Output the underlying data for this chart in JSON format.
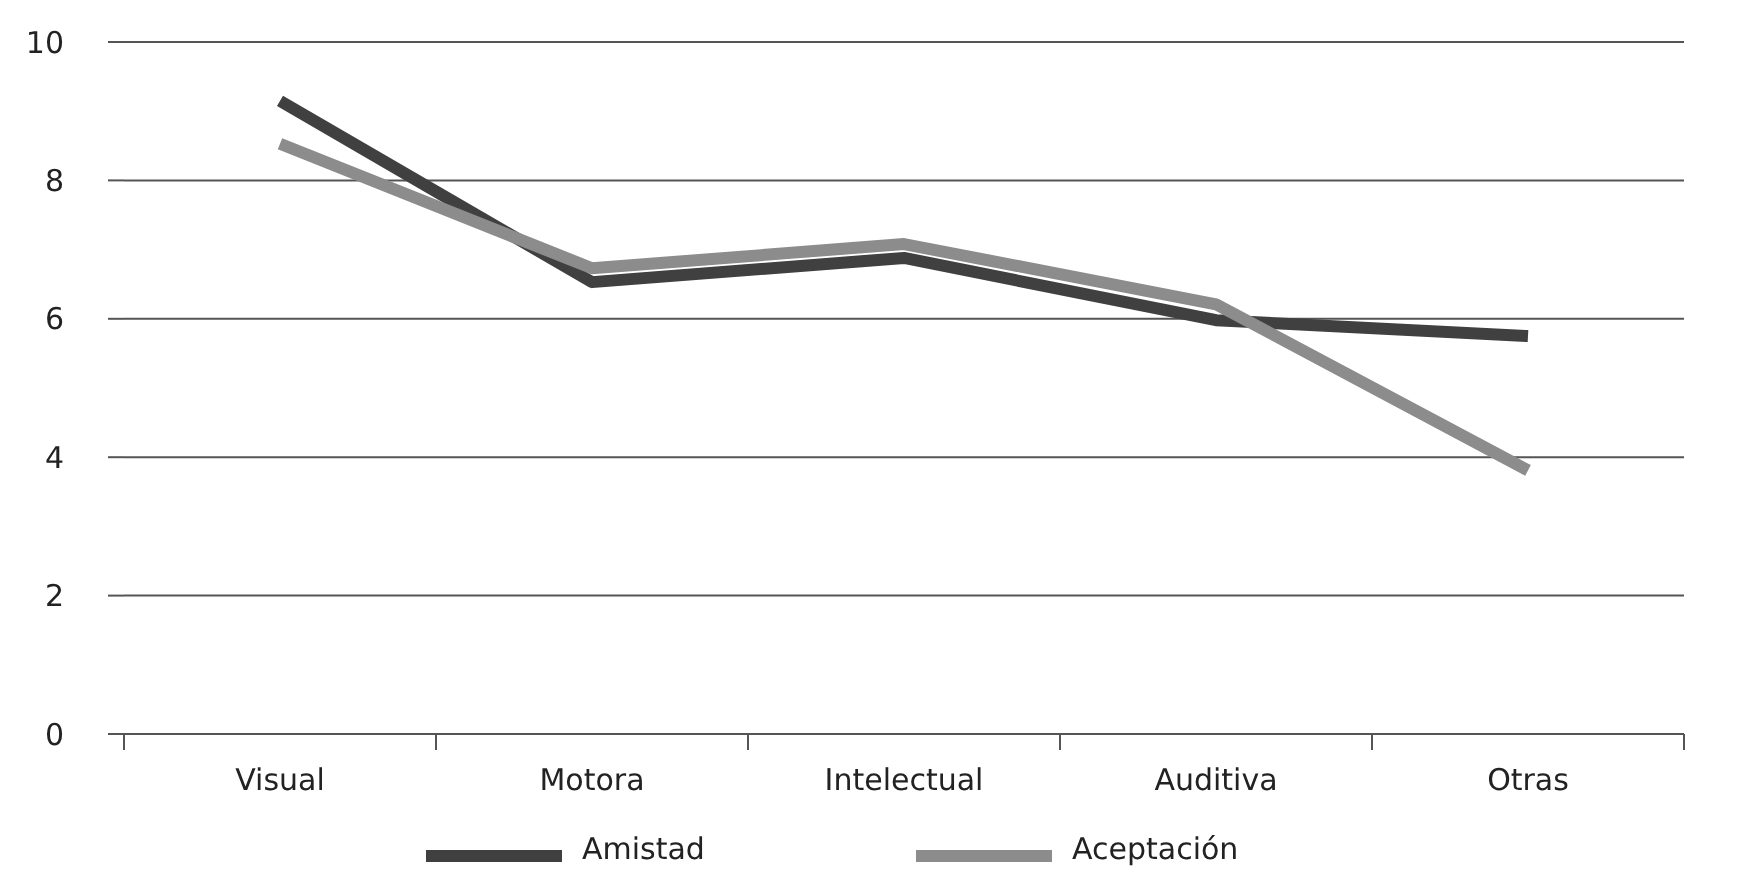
{
  "chart_data": {
    "type": "line",
    "categories": [
      "Visual",
      "Motora",
      "Intelectual",
      "Auditiva",
      "Otras"
    ],
    "series": [
      {
        "name": "Amistad",
        "color": "#404040",
        "values": [
          9.15,
          6.53,
          6.88,
          5.98,
          5.75
        ]
      },
      {
        "name": "Aceptación",
        "color": "#8c8c8c",
        "values": [
          8.53,
          6.73,
          7.08,
          6.21,
          3.81
        ]
      }
    ],
    "ylim": [
      0,
      10
    ],
    "yticks": [
      0,
      2,
      4,
      6,
      8,
      10
    ],
    "grid": "y",
    "legend": "bottom",
    "marker": "none",
    "line_style": "solid"
  }
}
